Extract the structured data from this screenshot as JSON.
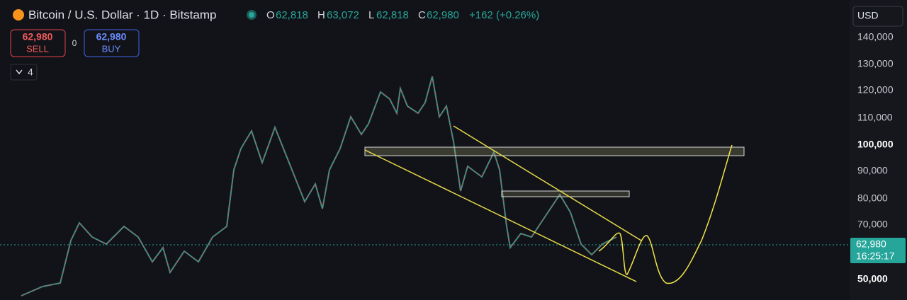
{
  "header": {
    "title": "Bitcoin / U.S. Dollar · 1D · Bitstamp",
    "ohlc": [
      {
        "label": "O",
        "value": "62,818"
      },
      {
        "label": "H",
        "value": "63,072"
      },
      {
        "label": "L",
        "value": "62,818"
      },
      {
        "label": "C",
        "value": "62,980"
      }
    ],
    "change": "+162 (+0.26%)"
  },
  "trade": {
    "sell_price": "62,980",
    "sell": "SELL",
    "spread": "0",
    "buy_price": "62,980",
    "buy": "BUY"
  },
  "indicators_toggle": "4",
  "currency": "USD",
  "price_axis": [
    "140,000",
    "130,000",
    "120,000",
    "110,000",
    "100,000",
    "90,000",
    "80,000",
    "70,000",
    "50,000"
  ],
  "last_price": {
    "price": "62,980",
    "countdown": "16:25:17"
  }
}
